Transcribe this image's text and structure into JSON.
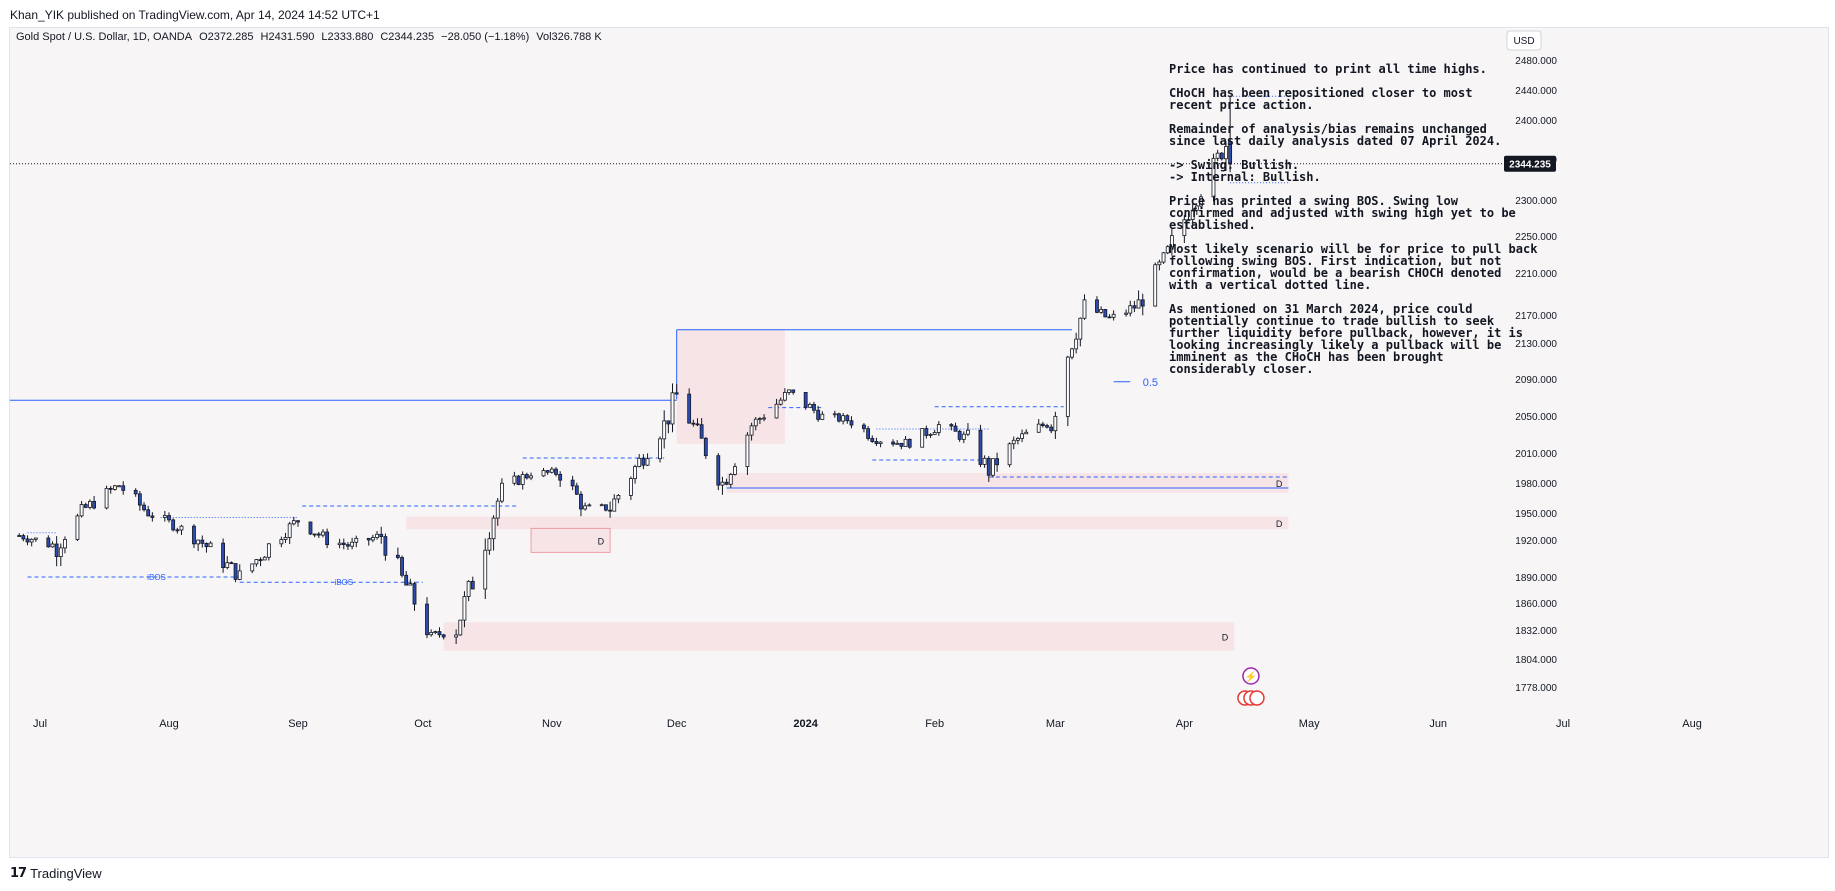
{
  "publisher": "Khan_YIK published on TradingView.com, Apr 14, 2024 14:52 UTC+1",
  "brand": "TradingView",
  "legend": {
    "symbol": "Gold Spot / U.S. Dollar, 1D, OANDA",
    "open": "O2372.285",
    "high": "H2431.590",
    "low": "L2333.880",
    "close": "C2344.235",
    "change": "−28.050 (−1.18%)",
    "volume": "Vol326.788 K"
  },
  "currency_button": "USD",
  "colors": {
    "up": "#ffffff",
    "down": "#2b4bb3",
    "wick": "#131722",
    "zone": "#f7dde0",
    "line": "#2962ff",
    "price_tag_bg": "#131722"
  },
  "analysis": [
    "Price has continued to print all time highs.",
    "CHoCH has been repositioned closer to most\nrecent price action.",
    "Remainder of analysis/bias remains unchanged\nsince last daily analysis dated 07 April 2024.",
    "-> Swing: Bullish.\n-> Internal: Bullish.",
    "Price has printed a swing BOS.  Swing low\nconfirmed and adjusted with swing high yet to be\nestablished.",
    "Most likely scenario will be for price to pull back\nfollowing swing BOS.  First indication, but not\nconfirmation, would be a bearish CHOCH denoted\nwith a vertical dotted line.",
    "As mentioned on 31 March 2024, price could\npotentially continue to trade bullish to seek\nfurther liquidity before pullback, however, it is\nlooking increasingly likely a pullback will be\nimminent as the CHoCH has been brought\nconsiderably closer."
  ],
  "annotations": {
    "ibos": "iBOS",
    "demand": "D",
    "fib": "0.5"
  },
  "chart_data": {
    "type": "candlestick",
    "symbol": "Gold Spot / U.S. Dollar",
    "interval": "1D",
    "y_ticks": [
      1778,
      1804,
      1832,
      1860,
      1890,
      1920,
      1950,
      1980,
      2010,
      2050,
      2090,
      2130,
      2170,
      2210,
      2250,
      2300,
      2350,
      2400,
      2440,
      2480
    ],
    "y_tick_labels": [
      "1778.000",
      "1804.000",
      "1832.000",
      "1860.000",
      "1890.000",
      "1920.000",
      "1950.000",
      "1980.000",
      "2010.000",
      "2050.000",
      "2090.000",
      "2130.000",
      "2170.000",
      "2210.000",
      "2250.000",
      "2300.000",
      "2350.000",
      "2400.000",
      "2440.000",
      "2480.000"
    ],
    "x_labels": [
      "Jul",
      "Aug",
      "Sep",
      "Oct",
      "Nov",
      "Dec",
      "2024",
      "Feb",
      "Mar",
      "Apr",
      "May",
      "Jun",
      "Jul",
      "Aug"
    ],
    "last_price": "2344.235",
    "bos_levels": [
      2067,
      2149,
      1975
    ],
    "swing_high": 2431.59,
    "swing_low_marker": 2321,
    "fib_level_price": 2087,
    "demand_zones": [
      {
        "from": "2023-09-27",
        "to": "2024-04-26",
        "low": 1932,
        "high": 1946,
        "label": "D"
      },
      {
        "from": "2023-12-13",
        "to": "2024-04-26",
        "low": 1970,
        "high": 1990,
        "label": "D"
      },
      {
        "from": "2023-10-06",
        "to": "2024-04-13",
        "low": 1812,
        "high": 1840,
        "label": "D"
      },
      {
        "from": "2023-10-27",
        "to": "2023-11-15",
        "low": 1910,
        "high": 1933,
        "label": "D"
      },
      {
        "from": "2023-12-01",
        "to": "2023-12-27",
        "low": 2020,
        "high": 2150,
        "label": ""
      }
    ],
    "ohlc_anchors": [
      [
        "2023-06-26",
        1925
      ],
      [
        "2023-07-05",
        1915
      ],
      [
        "2023-07-12",
        1955
      ],
      [
        "2023-07-20",
        1978
      ],
      [
        "2023-07-27",
        1950
      ],
      [
        "2023-08-03",
        1935
      ],
      [
        "2023-08-10",
        1915
      ],
      [
        "2023-08-18",
        1890
      ],
      [
        "2023-08-25",
        1915
      ],
      [
        "2023-09-01",
        1942
      ],
      [
        "2023-09-08",
        1920
      ],
      [
        "2023-09-14",
        1915
      ],
      [
        "2023-09-21",
        1925
      ],
      [
        "2023-09-27",
        1880
      ],
      [
        "2023-10-03",
        1825
      ],
      [
        "2023-10-09",
        1835
      ],
      [
        "2023-10-13",
        1885
      ],
      [
        "2023-10-20",
        1975
      ],
      [
        "2023-10-27",
        1990
      ],
      [
        "2023-11-03",
        1990
      ],
      [
        "2023-11-09",
        1955
      ],
      [
        "2023-11-15",
        1955
      ],
      [
        "2023-11-21",
        1995
      ],
      [
        "2023-11-28",
        2040
      ],
      [
        "2023-12-01",
        2072
      ],
      [
        "2023-12-06",
        2030
      ],
      [
        "2023-12-12",
        1980
      ],
      [
        "2023-12-19",
        2040
      ],
      [
        "2023-12-28",
        2075
      ],
      [
        "2024-01-05",
        2050
      ],
      [
        "2024-01-12",
        2045
      ],
      [
        "2024-01-18",
        2025
      ],
      [
        "2024-01-25",
        2020
      ],
      [
        "2024-02-02",
        2040
      ],
      [
        "2024-02-09",
        2025
      ],
      [
        "2024-02-14",
        1992
      ],
      [
        "2024-02-21",
        2025
      ],
      [
        "2024-02-29",
        2045
      ],
      [
        "2024-03-04",
        2120
      ],
      [
        "2024-03-08",
        2180
      ],
      [
        "2024-03-14",
        2165
      ],
      [
        "2024-03-21",
        2180
      ],
      [
        "2024-03-28",
        2230
      ],
      [
        "2024-04-03",
        2295
      ],
      [
        "2024-04-09",
        2350
      ],
      [
        "2024-04-11",
        2372
      ],
      [
        "2024-04-12",
        2344
      ]
    ]
  }
}
